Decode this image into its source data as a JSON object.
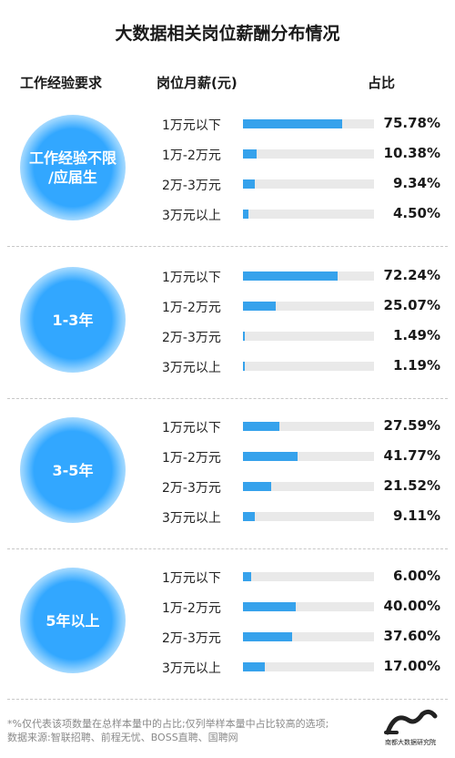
{
  "title": "大数据相关岗位薪酬分布情况",
  "headers": {
    "experience": "工作经验要求",
    "salary": "岗位月薪(元)",
    "share": "占比"
  },
  "colors": {
    "bar": "#36a2ec",
    "track": "#e9e9e9",
    "circle": "#32a7ff"
  },
  "chart_data": {
    "type": "bar",
    "categories": [
      "1万元以下",
      "1万-2万元",
      "2万-3万元",
      "3万元以上"
    ],
    "unit": "%",
    "groups": [
      {
        "label": "工作经验不限\n/应届生",
        "values": [
          75.78,
          10.38,
          9.34,
          4.5
        ],
        "value_labels": [
          "75.78%",
          "10.38%",
          "9.34%",
          "4.50%"
        ]
      },
      {
        "label": "1-3年",
        "values": [
          72.24,
          25.07,
          1.49,
          1.19
        ],
        "value_labels": [
          "72.24%",
          "25.07%",
          "1.49%",
          "1.19%"
        ]
      },
      {
        "label": "3-5年",
        "values": [
          27.59,
          41.77,
          21.52,
          9.11
        ],
        "value_labels": [
          "27.59%",
          "41.77%",
          "21.52%",
          "9.11%"
        ]
      },
      {
        "label": "5年以上",
        "values": [
          6.0,
          40.0,
          37.6,
          17.0
        ],
        "value_labels": [
          "6.00%",
          "40.00%",
          "37.60%",
          "17.00%"
        ]
      }
    ]
  },
  "footer": {
    "note": "*%仅代表该项数量在总样本量中的占比;仅列举样本量中占比较高的选项;",
    "source": "数据来源:智联招聘、前程无忧、BOSS直聘、国聘网"
  },
  "logo": {
    "text": "南都大数据研究院"
  }
}
